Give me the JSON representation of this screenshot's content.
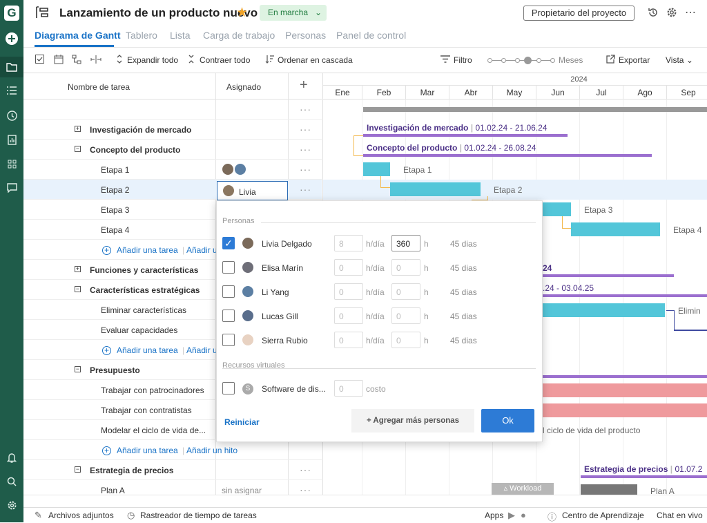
{
  "project": {
    "title": "Lanzamiento de un producto nuevo",
    "status": "En marcha",
    "owner_button": "Propietario del proyecto"
  },
  "tabs": [
    "Diagrama de Gantt",
    "Tablero",
    "Lista",
    "Carga de trabajo",
    "Personas",
    "Panel de control"
  ],
  "toolbar": {
    "expand": "Expandir todo",
    "collapse": "Contraer todo",
    "cascade": "Ordenar en cascada",
    "filter": "Filtro",
    "zoom_label": "Meses",
    "export": "Exportar",
    "view": "Vista"
  },
  "grid": {
    "col_task": "Nombre de tarea",
    "col_assigned": "Asignado",
    "rows": [
      {
        "name": ""
      },
      {
        "name": "Investigación de mercado"
      },
      {
        "name": "Concepto del producto"
      },
      {
        "name": "Etapa 1"
      },
      {
        "name": "Etapa 2",
        "assignee": "Livia"
      },
      {
        "name": "Etapa 3"
      },
      {
        "name": "Etapa 4"
      },
      {
        "name": ""
      },
      {
        "name": "Funciones y características"
      },
      {
        "name": "Características estratégicas"
      },
      {
        "name": "Eliminar características"
      },
      {
        "name": "Evaluar capacidades"
      },
      {
        "name": ""
      },
      {
        "name": "Presupuesto"
      },
      {
        "name": "Trabajar con patrocinadores"
      },
      {
        "name": "Trabajar con contratistas"
      },
      {
        "name": "Modelar el ciclo de vida de..."
      },
      {
        "name": ""
      },
      {
        "name": "Estrategia de precios"
      },
      {
        "name": "Plan A",
        "assignee": "sin asignar"
      }
    ],
    "add_task": "Añadir una tarea",
    "add_task_short": "Añadir u",
    "add_milestone": "Añadir un hito"
  },
  "gantt": {
    "year": "2024",
    "months": [
      "Ene",
      "Feb",
      "Mar",
      "Abr",
      "May",
      "Jun",
      "Jul",
      "Ago",
      "Sep"
    ],
    "labels": {
      "inv": "Investigación de mercado",
      "inv_d": "01.02.24 - 21.06.24",
      "con": "Concepto del producto",
      "con_d": "01.02.24 - 26.08.24",
      "e1": "Etapa 1",
      "e2": "Etapa 2",
      "e3": "Etapa 3",
      "e4": "Etapa 4",
      "fc_d": "24",
      "ce_d": ".24 - 03.04.25",
      "elim": "Elimin",
      "ciclo": "l ciclo de vida del producto",
      "ep": "Estrategia de precios",
      "ep_d": "01.07.2",
      "plana": "Plan A"
    },
    "workload": "Workload"
  },
  "popup": {
    "people_title": "Personas",
    "people": [
      {
        "name": "Livia Delgado",
        "hday": "8",
        "hours": "360",
        "days": "45 dias",
        "checked": true
      },
      {
        "name": "Elisa Marín",
        "hday": "0",
        "hours": "0",
        "days": "45 dias",
        "checked": false
      },
      {
        "name": "Li Yang",
        "hday": "0",
        "hours": "0",
        "days": "45 dias",
        "checked": false
      },
      {
        "name": "Lucas Gill",
        "hday": "0",
        "hours": "0",
        "days": "45 dias",
        "checked": false
      },
      {
        "name": "Sierra Rubio",
        "hday": "0",
        "hours": "0",
        "days": "45 dias",
        "checked": false
      }
    ],
    "unit_hday": "h/día",
    "unit_h": "h",
    "virtual_title": "Recursos virtuales",
    "virtual": {
      "name": "Software de dis...",
      "value": "0",
      "unit": "costo"
    },
    "reset": "Reiniciar",
    "add_more": "+ Agregar más personas",
    "ok": "Ok"
  },
  "footer": {
    "attachments": "Archivos adjuntos",
    "tracker": "Rastreador de tiempo de tareas",
    "apps": "Apps",
    "learning": "Centro de Aprendizaje",
    "chat": "Chat en vivo"
  }
}
